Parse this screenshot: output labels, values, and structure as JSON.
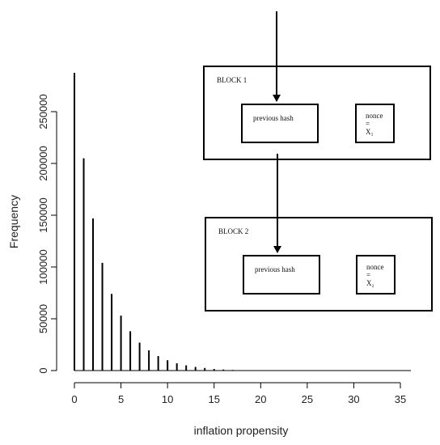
{
  "chart_data": {
    "type": "spike",
    "x": [
      0,
      1,
      2,
      3,
      4,
      5,
      6,
      7,
      8,
      9,
      10,
      11,
      12,
      13,
      14,
      15,
      16,
      17,
      18
    ],
    "values": [
      287500,
      205000,
      147000,
      104000,
      74000,
      53000,
      38000,
      27000,
      19500,
      14000,
      10000,
      7000,
      5000,
      3500,
      2500,
      1500,
      1000,
      600,
      300
    ],
    "color": "#000000",
    "xlabel": "inflation propensity",
    "ylabel": "Frequency",
    "xlim": [
      0,
      35
    ],
    "xticks": [
      0,
      5,
      10,
      15,
      20,
      25,
      30,
      35
    ],
    "ylim": [
      0,
      250000
    ],
    "yticks": [
      0,
      50000,
      100000,
      150000,
      200000,
      250000
    ]
  },
  "diagram": {
    "blocks": [
      {
        "title": "BLOCK 1",
        "hash_label": "previous hash",
        "nonce_lines": [
          "nonce",
          "=",
          "X₁"
        ]
      },
      {
        "title": "BLOCK 2",
        "hash_label": "previous hash",
        "nonce_lines": [
          "nonce",
          "=",
          "X₂"
        ]
      }
    ]
  }
}
